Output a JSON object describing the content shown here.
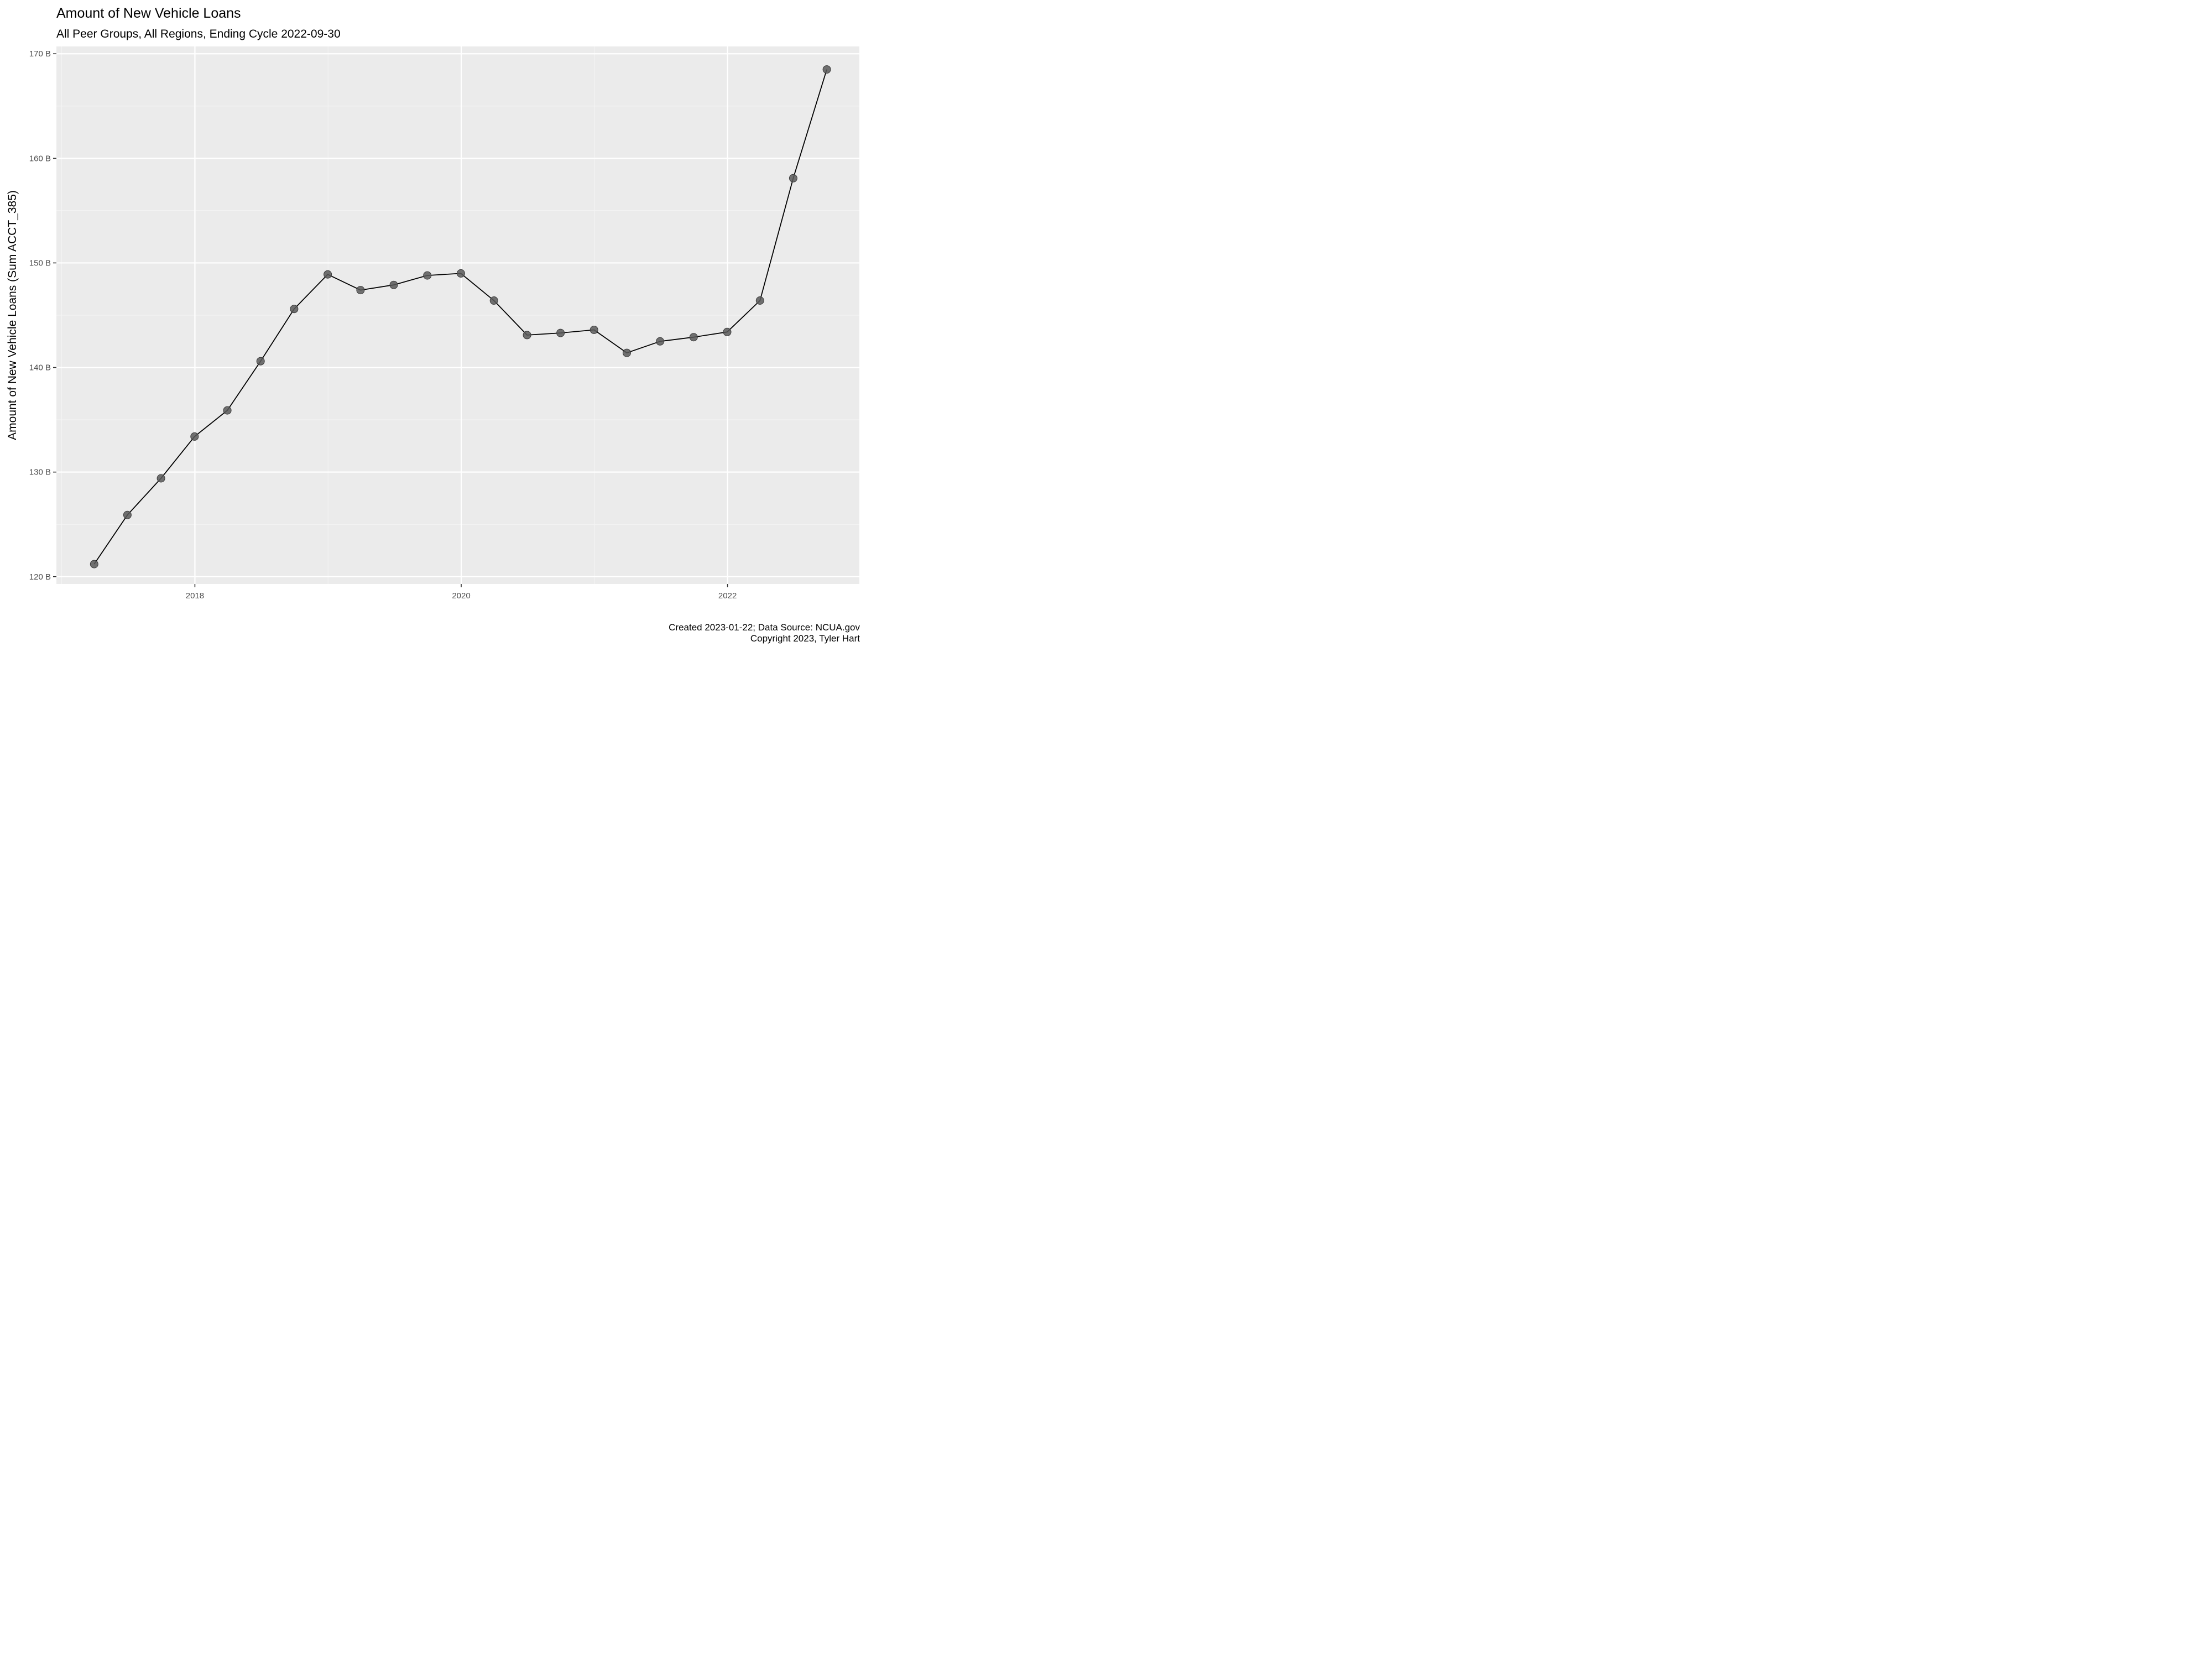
{
  "chart_data": {
    "type": "line",
    "title": "Amount of New Vehicle Loans",
    "subtitle": "All Peer Groups, All Regions, Ending Cycle 2022-09-30",
    "xlabel": "",
    "ylabel": "Amount of New Vehicle Loans (Sum ACCT_385)",
    "caption_lines": [
      "Created 2023-01-22; Data Source: NCUA.gov",
      "Copyright 2023, Tyler Hart"
    ],
    "x_ticks": [
      {
        "value": 2018,
        "label": "2018"
      },
      {
        "value": 2020,
        "label": "2020"
      },
      {
        "value": 2022,
        "label": "2022"
      }
    ],
    "y_ticks": [
      {
        "value": 120,
        "label": "120 B"
      },
      {
        "value": 130,
        "label": "130 B"
      },
      {
        "value": 140,
        "label": "140 B"
      },
      {
        "value": 150,
        "label": "150 B"
      },
      {
        "value": 160,
        "label": "160 B"
      },
      {
        "value": 170,
        "label": "170 B"
      }
    ],
    "xlim": [
      2016.96,
      2022.99
    ],
    "ylim": [
      119.3,
      170.7
    ],
    "grid": true,
    "y_unit": "billions",
    "series": [
      {
        "x": [
          "2017-03-31",
          "2017-06-30",
          "2017-09-30",
          "2017-12-31",
          "2018-03-31",
          "2018-06-30",
          "2018-09-30",
          "2018-12-31",
          "2019-03-31",
          "2019-06-30",
          "2019-09-30",
          "2019-12-31",
          "2020-03-31",
          "2020-06-30",
          "2020-09-30",
          "2020-12-31",
          "2021-03-31",
          "2021-06-30",
          "2021-09-30",
          "2021-12-31",
          "2022-03-31",
          "2022-06-30",
          "2022-09-30"
        ],
        "y": [
          121.2,
          125.9,
          129.4,
          133.4,
          135.9,
          140.6,
          145.6,
          148.9,
          147.4,
          147.9,
          148.8,
          149.0,
          146.4,
          143.1,
          143.3,
          143.6,
          141.4,
          142.5,
          142.9,
          143.4,
          146.4,
          158.1,
          168.5
        ],
        "line_color": "#000000",
        "point_color": "#595959"
      }
    ],
    "colors": {
      "panel_background": "#ebebeb",
      "grid_major": "#ffffff",
      "grid_minor": "#f5f5f5",
      "tick_text": "#4d4d4d"
    }
  }
}
